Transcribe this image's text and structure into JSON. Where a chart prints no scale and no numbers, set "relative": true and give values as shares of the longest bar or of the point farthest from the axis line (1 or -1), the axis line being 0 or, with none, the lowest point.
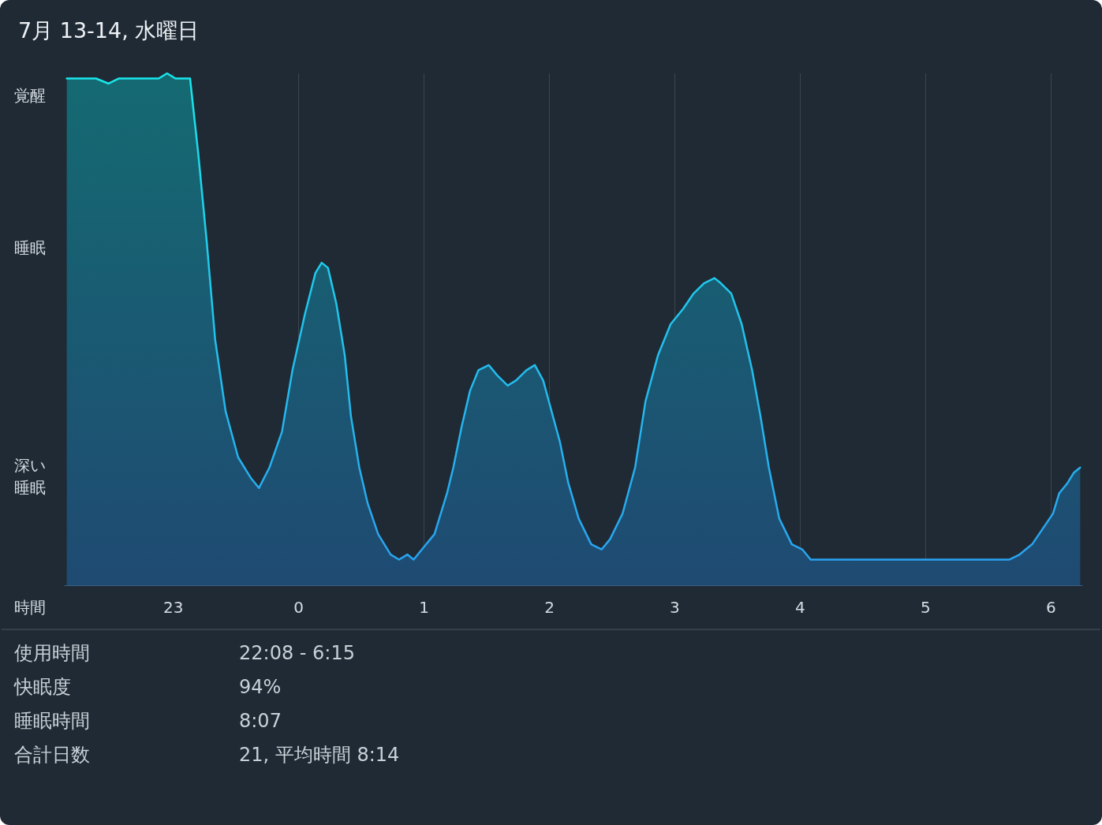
{
  "chart_data": {
    "type": "area",
    "title": "7月 13-14, 水曜日",
    "xlabel": "時間",
    "relative": true,
    "grid": "x",
    "marker": "none",
    "line_style": "solid",
    "xlim": [
      "--07-13T22:08",
      "--07-14T06:15"
    ],
    "xticks": [
      {
        "value": "--07-13T23:00",
        "label": "23"
      },
      {
        "value": "--07-14T00:00",
        "label": "0"
      },
      {
        "value": "--07-14T01:00",
        "label": "1"
      },
      {
        "value": "--07-14T02:00",
        "label": "2"
      },
      {
        "value": "--07-14T03:00",
        "label": "3"
      },
      {
        "value": "--07-14T04:00",
        "label": "4"
      },
      {
        "value": "--07-14T05:00",
        "label": "5"
      },
      {
        "value": "--07-14T06:00",
        "label": "6"
      }
    ],
    "series": [
      {
        "color": "#29a3f0",
        "x": [
          "--07-13T22:09",
          "--07-13T22:11",
          "--07-13T22:16",
          "--07-13T22:23",
          "--07-13T22:29",
          "--07-13T22:34",
          "--07-13T22:46",
          "--07-13T22:53",
          "--07-13T22:57",
          "--07-13T23:01",
          "--07-13T23:07",
          "--07-13T23:08",
          "--07-13T23:12",
          "--07-13T23:16",
          "--07-13T23:20",
          "--07-13T23:25",
          "--07-13T23:31",
          "--07-13T23:37",
          "--07-13T23:41",
          "--07-13T23:46",
          "--07-13T23:52",
          "--07-13T23:57",
          "--07-14T00:03",
          "--07-14T00:08",
          "--07-14T00:11",
          "--07-14T00:14",
          "--07-14T00:18",
          "--07-14T00:22",
          "--07-14T00:25",
          "--07-14T00:29",
          "--07-14T00:33",
          "--07-14T00:38",
          "--07-14T00:44",
          "--07-14T00:48",
          "--07-14T00:52",
          "--07-14T00:55",
          "--07-14T00:59",
          "--07-14T01:05",
          "--07-14T01:11",
          "--07-14T01:14",
          "--07-14T01:18",
          "--07-14T01:22",
          "--07-14T01:26",
          "--07-14T01:31",
          "--07-14T01:35",
          "--07-14T01:40",
          "--07-14T01:44",
          "--07-14T01:49",
          "--07-14T01:53",
          "--07-14T01:57",
          "--07-14T02:01",
          "--07-14T02:05",
          "--07-14T02:09",
          "--07-14T02:14",
          "--07-14T02:20",
          "--07-14T02:25",
          "--07-14T02:29",
          "--07-14T02:35",
          "--07-14T02:41",
          "--07-14T02:46",
          "--07-14T02:52",
          "--07-14T02:58",
          "--07-14T03:04",
          "--07-14T03:09",
          "--07-14T03:14",
          "--07-14T03:19",
          "--07-14T03:22",
          "--07-14T03:27",
          "--07-14T03:32",
          "--07-14T03:37",
          "--07-14T03:41",
          "--07-14T03:45",
          "--07-14T03:50",
          "--07-14T03:56",
          "--07-14T04:01",
          "--07-14T04:05",
          "--07-14T04:09",
          "--07-14T04:17",
          "--07-14T04:22",
          "--07-14T04:28",
          "--07-14T04:34",
          "--07-14T04:41",
          "--07-14T04:47",
          "--07-14T04:55",
          "--07-14T05:02",
          "--07-14T05:10",
          "--07-14T05:15",
          "--07-14T05:20",
          "--07-14T05:28",
          "--07-14T05:34",
          "--07-14T05:40",
          "--07-14T05:45",
          "--07-14T05:51",
          "--07-14T05:56",
          "--07-14T06:01",
          "--07-14T06:04",
          "--07-14T06:08",
          "--07-14T06:11",
          "--07-14T06:14"
        ],
        "values": [
          0.99,
          0.99,
          0.99,
          0.99,
          0.98,
          0.99,
          0.99,
          0.99,
          1,
          0.99,
          0.99,
          0.99,
          0.84,
          0.67,
          0.48,
          0.34,
          0.25,
          0.21,
          0.19,
          0.23,
          0.3,
          0.42,
          0.53,
          0.61,
          0.63,
          0.62,
          0.55,
          0.45,
          0.33,
          0.23,
          0.16,
          0.1,
          0.06,
          0.05,
          0.06,
          0.05,
          0.07,
          0.1,
          0.18,
          0.23,
          0.31,
          0.38,
          0.42,
          0.43,
          0.41,
          0.39,
          0.4,
          0.42,
          0.43,
          0.4,
          0.34,
          0.28,
          0.2,
          0.13,
          0.08,
          0.07,
          0.09,
          0.14,
          0.23,
          0.36,
          0.45,
          0.51,
          0.54,
          0.57,
          0.59,
          0.6,
          0.59,
          0.57,
          0.51,
          0.42,
          0.33,
          0.23,
          0.13,
          0.08,
          0.07,
          0.05,
          0.05,
          0.05,
          0.05,
          0.05,
          0.05,
          0.05,
          0.05,
          0.05,
          0.05,
          0.05,
          0.05,
          0.05,
          0.05,
          0.05,
          0.05,
          0.06,
          0.08,
          0.11,
          0.14,
          0.18,
          0.2,
          0.22,
          0.23
        ]
      }
    ],
    "annotations": [
      "覚醒",
      "睡眠",
      "深い睡眠",
      "使用時間",
      "22:08 - 6:15",
      "快眠度",
      "94%",
      "睡眠時間",
      "8:07",
      "合計日数",
      "21, 平均時間 8:14"
    ]
  }
}
